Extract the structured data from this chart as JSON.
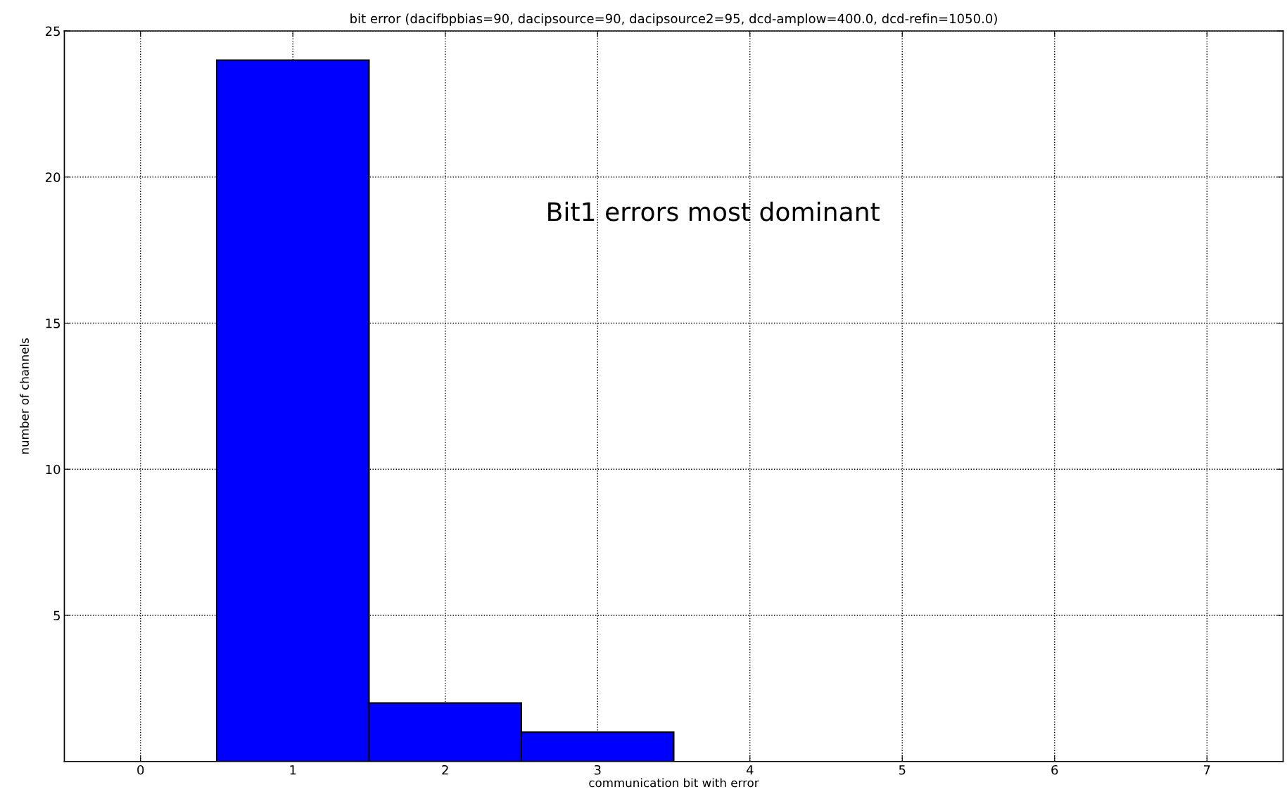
{
  "chart_data": {
    "type": "histogram",
    "title": "bit error (dacifbpbias=90, dacipsource=90, dacipsource2=95, dcd-amplow=400.0, dcd-refin=1050.0)",
    "xlabel": "communication bit with error",
    "ylabel": "number of channels",
    "annotations": [
      "Bit1 errors most dominant"
    ],
    "bins": [
      -0.5,
      0.5,
      1.5,
      2.5,
      3.5,
      4.5,
      5.5,
      6.5,
      7.5
    ],
    "values": [
      0,
      24,
      2,
      1,
      0,
      0,
      0,
      0
    ],
    "color": "#0000ff",
    "xlim": [
      -0.5,
      7.5
    ],
    "xticks": [
      0,
      1,
      2,
      3,
      4,
      5,
      6,
      7
    ],
    "ylim": [
      0,
      25
    ],
    "yticks": [
      5,
      10,
      15,
      20,
      25
    ],
    "grid": true
  }
}
